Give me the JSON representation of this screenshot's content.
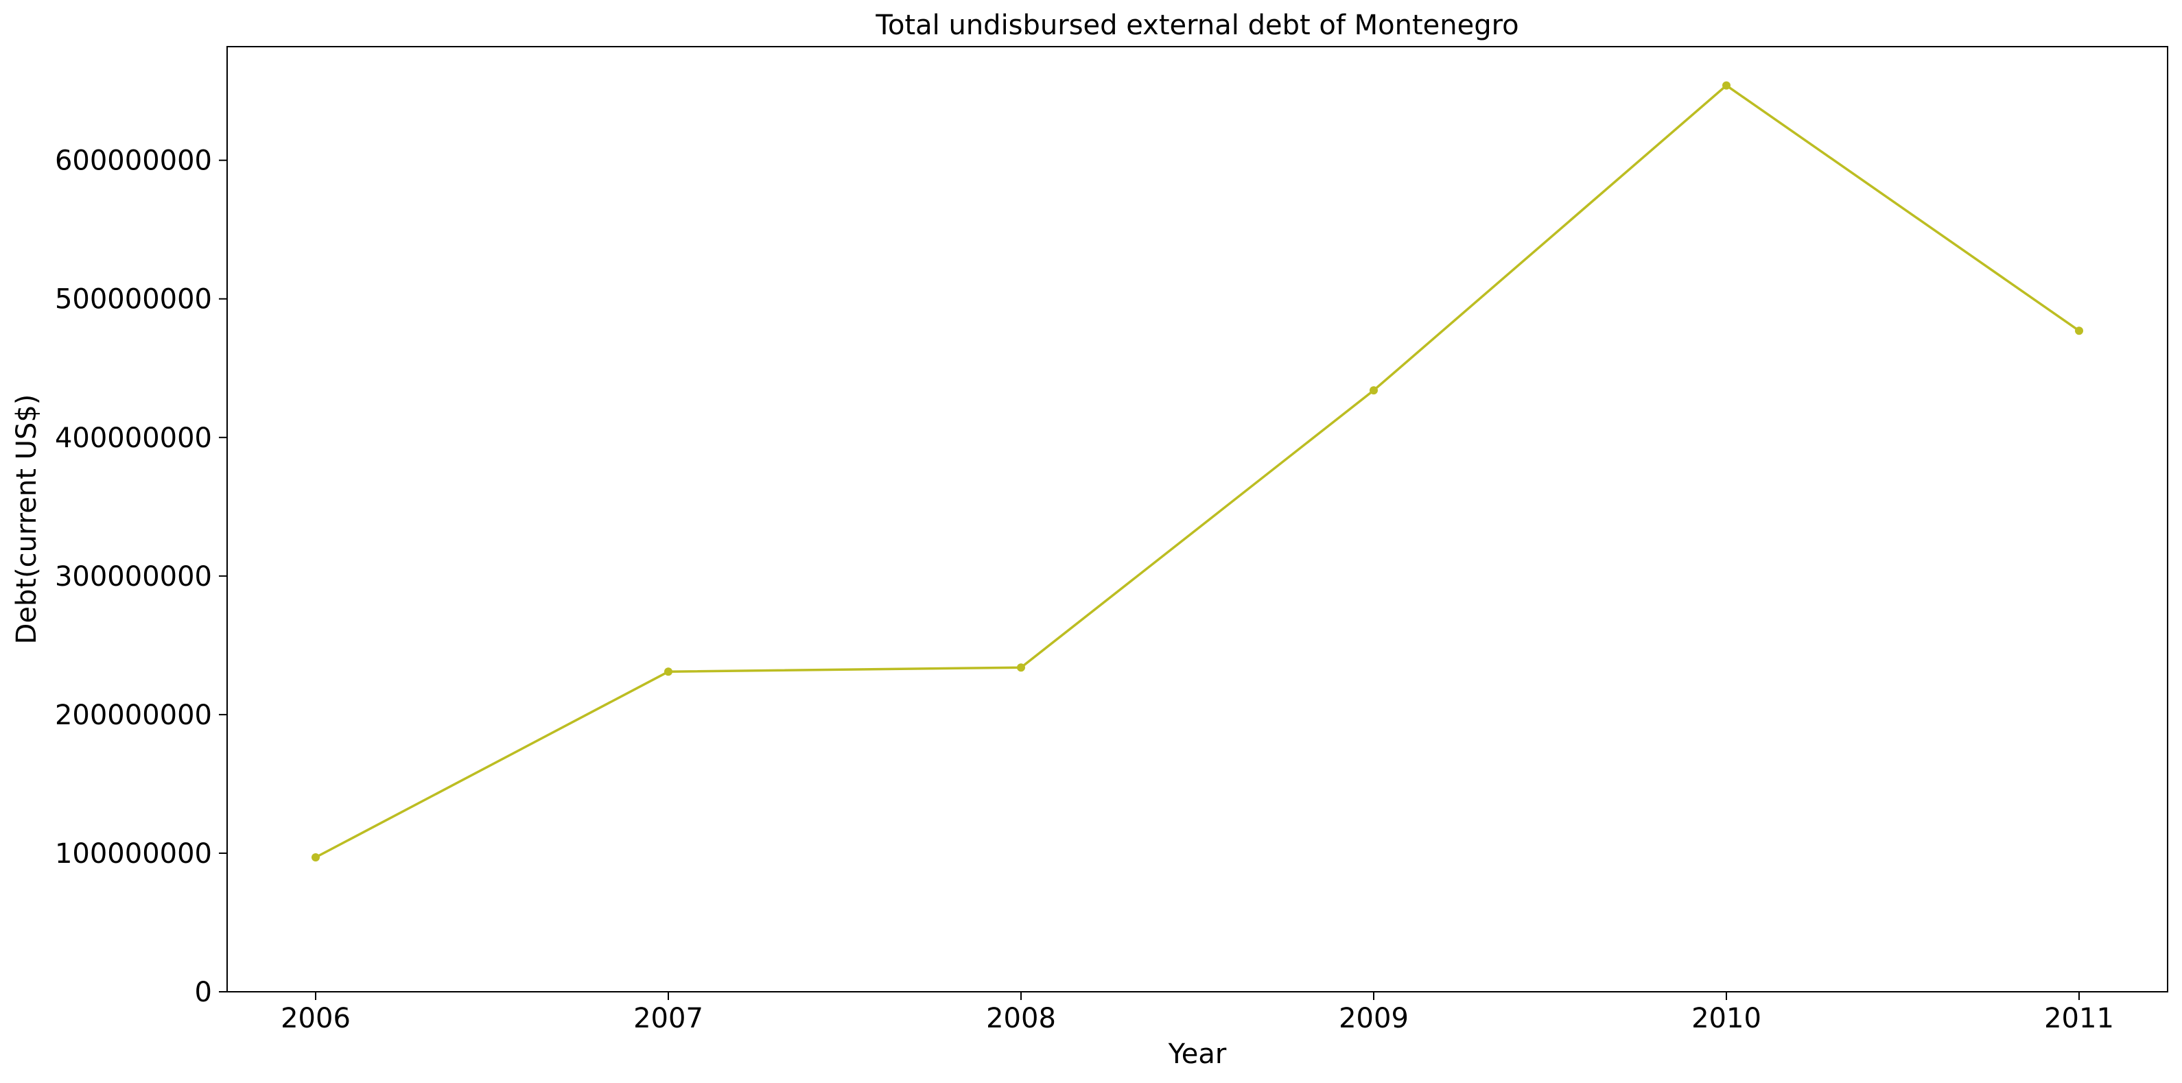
{
  "chart_data": {
    "type": "line",
    "title": "Total undisbursed external debt of Montenegro",
    "xlabel": "Year",
    "ylabel": "Debt(current US$)",
    "x": [
      "2006",
      "2007",
      "2008",
      "2009",
      "2010",
      "2011"
    ],
    "series": [
      {
        "values": [
          97000000,
          231000000,
          234000000,
          434000000,
          654000000,
          477000000
        ],
        "color": "#bcbd22"
      }
    ],
    "ylim": [
      0,
      682000000
    ],
    "yticks": [
      0,
      100000000,
      200000000,
      300000000,
      400000000,
      500000000,
      600000000
    ],
    "ytick_labels": [
      "0",
      "100000000",
      "200000000",
      "300000000",
      "400000000",
      "500000000",
      "600000000"
    ],
    "grid": false,
    "legend": "none"
  }
}
